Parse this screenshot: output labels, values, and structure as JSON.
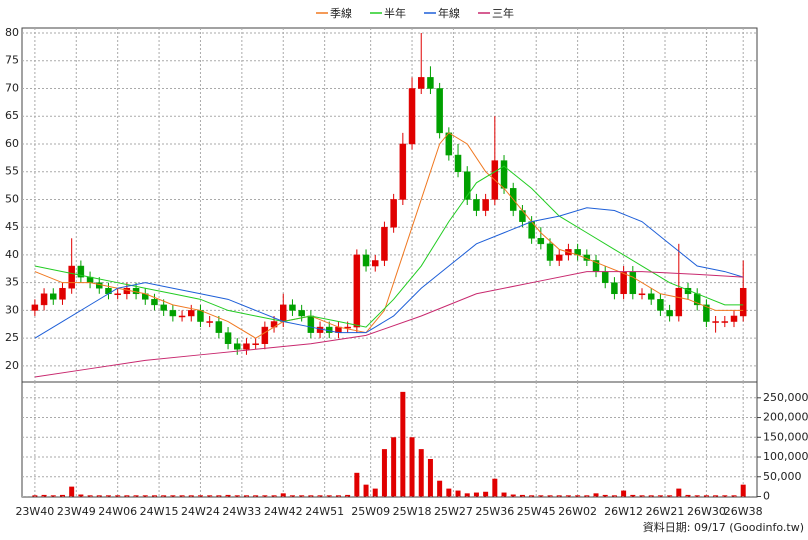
{
  "chart_data": [
    {
      "type": "candlestick",
      "x": [
        0,
        2,
        4,
        6,
        8,
        10,
        12,
        14,
        16,
        18,
        20,
        22,
        24,
        26,
        28,
        30,
        32,
        34,
        36,
        38,
        40,
        42,
        44,
        46,
        48,
        50,
        52,
        54,
        56,
        58,
        60,
        62,
        64,
        66,
        68,
        70,
        72,
        74,
        76,
        78,
        80,
        82,
        84,
        86,
        88,
        90,
        92,
        94,
        96,
        98,
        100,
        102,
        104,
        106,
        108,
        110,
        112,
        114,
        116,
        118,
        120,
        122,
        124,
        126,
        128,
        130,
        132,
        134,
        136,
        138,
        140,
        142,
        144,
        146,
        148,
        150,
        152,
        154
      ],
      "open": [
        30,
        31,
        33,
        32,
        34,
        38,
        36,
        35,
        34,
        33,
        33,
        34,
        33,
        32,
        31,
        30,
        29,
        29,
        30,
        28,
        28,
        26,
        24,
        23,
        24,
        24,
        27,
        28,
        31,
        30,
        29,
        26,
        27,
        26,
        27,
        27,
        40,
        38,
        39,
        45,
        50,
        60,
        70,
        72,
        70,
        62,
        58,
        55,
        50,
        48,
        50,
        57,
        52,
        48,
        46,
        43,
        42,
        39,
        40,
        41,
        40,
        39,
        37,
        35,
        33,
        37,
        33,
        33,
        32,
        30,
        29,
        34,
        33,
        31,
        28,
        28,
        28,
        29
      ],
      "high": [
        32,
        34,
        34,
        35,
        43,
        39,
        37,
        36,
        35,
        34,
        35,
        35,
        34,
        33,
        32,
        31,
        30,
        31,
        31,
        29,
        29,
        27,
        25,
        25,
        25,
        28,
        29,
        33,
        32,
        31,
        30,
        28,
        28,
        28,
        28,
        41,
        41,
        40,
        46,
        51,
        62,
        72,
        80,
        74,
        71,
        63,
        60,
        56,
        51,
        51,
        65,
        58,
        53,
        49,
        47,
        45,
        43,
        41,
        42,
        42,
        41,
        40,
        38,
        36,
        38,
        38,
        34,
        34,
        33,
        31,
        42,
        35,
        34,
        32,
        29,
        29,
        30,
        39
      ],
      "low": [
        29,
        30,
        31,
        31,
        33,
        35,
        34,
        33,
        32,
        32,
        32,
        32,
        31,
        30,
        29,
        28,
        28,
        28,
        27,
        27,
        25,
        23,
        22,
        22,
        23,
        23,
        26,
        27,
        29,
        28,
        25,
        25,
        25,
        25,
        26,
        26,
        37,
        37,
        38,
        44,
        49,
        59,
        69,
        69,
        61,
        57,
        54,
        49,
        47,
        47,
        49,
        51,
        47,
        45,
        42,
        41,
        38,
        38,
        39,
        39,
        38,
        36,
        34,
        32,
        32,
        32,
        32,
        31,
        29,
        28,
        28,
        32,
        30,
        27,
        26,
        27,
        27,
        28
      ],
      "close": [
        31,
        33,
        32,
        34,
        38,
        36,
        35,
        34,
        33,
        33,
        34,
        33,
        32,
        31,
        30,
        29,
        29,
        30,
        28,
        28,
        26,
        24,
        23,
        24,
        24,
        27,
        28,
        31,
        30,
        29,
        26,
        27,
        26,
        27,
        27,
        40,
        38,
        39,
        45,
        50,
        60,
        70,
        72,
        70,
        62,
        58,
        55,
        50,
        48,
        50,
        57,
        52,
        48,
        46,
        43,
        42,
        39,
        40,
        41,
        40,
        39,
        37,
        35,
        33,
        37,
        33,
        33,
        32,
        30,
        29,
        34,
        33,
        31,
        28,
        28,
        28,
        29,
        34
      ],
      "up_color": "#e00000",
      "down_color": "#00a000",
      "xlim": [
        -2.8,
        157
      ],
      "ylim": [
        17.1,
        80.9
      ],
      "yticks": [
        20,
        25,
        30,
        35,
        40,
        45,
        50,
        55,
        60,
        65,
        70,
        75,
        80
      ],
      "grid": true,
      "legend": "top",
      "series": [
        {
          "name": "季線",
          "color": "#f07820",
          "x": [
            0,
            6,
            12,
            18,
            24,
            30,
            36,
            42,
            48,
            54,
            60,
            66,
            72,
            76,
            80,
            84,
            88,
            90,
            94,
            98,
            102,
            106,
            110,
            114,
            118,
            124,
            130,
            136,
            142,
            148,
            154
          ],
          "values": [
            37,
            35,
            35,
            34,
            33,
            31,
            30,
            28,
            25,
            28,
            29,
            27,
            26,
            30,
            40,
            50,
            60,
            62,
            60,
            55,
            52,
            48,
            44,
            41,
            40,
            38,
            36,
            33,
            32,
            30,
            30
          ]
        },
        {
          "name": "半年",
          "color": "#22cc22",
          "x": [
            0,
            6,
            12,
            18,
            24,
            30,
            36,
            42,
            48,
            54,
            60,
            66,
            72,
            78,
            84,
            90,
            96,
            102,
            108,
            114,
            120,
            126,
            132,
            138,
            144,
            150,
            154
          ],
          "values": [
            38,
            37,
            36,
            35,
            34,
            33,
            32,
            30,
            29,
            28,
            29,
            28,
            27,
            32,
            38,
            46,
            53,
            56,
            52,
            47,
            44,
            41,
            38,
            35,
            33,
            31,
            31
          ]
        },
        {
          "name": "年線",
          "color": "#1e5fd8",
          "x": [
            0,
            6,
            12,
            18,
            24,
            30,
            36,
            42,
            48,
            54,
            60,
            66,
            72,
            78,
            84,
            90,
            96,
            102,
            108,
            114,
            120,
            126,
            132,
            138,
            144,
            150,
            154
          ],
          "values": [
            25,
            28,
            31,
            34,
            35,
            34,
            33,
            32,
            30,
            28,
            27,
            26,
            26,
            29,
            34,
            38,
            42,
            44,
            46,
            47,
            48.5,
            48,
            46,
            42,
            38,
            37,
            36
          ]
        },
        {
          "name": "三年",
          "color": "#c8286e",
          "x": [
            0,
            12,
            24,
            36,
            48,
            60,
            72,
            84,
            96,
            108,
            120,
            132,
            144,
            154
          ],
          "values": [
            18,
            19.5,
            21,
            22,
            23,
            24,
            25.5,
            29,
            33,
            35,
            37,
            37,
            36.5,
            36
          ]
        }
      ]
    },
    {
      "type": "bar",
      "values": [
        3000,
        4000,
        3000,
        4000,
        25000,
        5000,
        3000,
        3000,
        3000,
        3000,
        3000,
        3000,
        3000,
        3000,
        3000,
        3000,
        3000,
        3000,
        3000,
        3000,
        3000,
        4000,
        3000,
        3000,
        3000,
        3000,
        3000,
        8000,
        3000,
        3000,
        3000,
        3000,
        3000,
        3000,
        4000,
        60000,
        30000,
        20000,
        120000,
        150000,
        265000,
        150000,
        120000,
        95000,
        40000,
        20000,
        15000,
        8000,
        10000,
        12000,
        45000,
        10000,
        5000,
        4000,
        3000,
        3000,
        3000,
        3000,
        3000,
        3000,
        3000,
        8000,
        4000,
        3000,
        15000,
        4000,
        3000,
        3000,
        3000,
        3000,
        20000,
        4000,
        3000,
        3000,
        3000,
        3000,
        3000,
        30000
      ],
      "color": "#e00000",
      "xlim": [
        -2.8,
        157
      ],
      "ylim": [
        0,
        290000
      ],
      "xticks": [
        {
          "value": 0,
          "label": "23W40"
        },
        {
          "value": 9,
          "label": "23W49"
        },
        {
          "value": 18,
          "label": "24W06"
        },
        {
          "value": 27,
          "label": "24W15"
        },
        {
          "value": 36,
          "label": "24W24"
        },
        {
          "value": 45,
          "label": "24W33"
        },
        {
          "value": 54,
          "label": "24W42"
        },
        {
          "value": 63,
          "label": "24W51"
        },
        {
          "value": 73,
          "label": "25W09"
        },
        {
          "value": 82,
          "label": "25W18"
        },
        {
          "value": 91,
          "label": "25W27"
        },
        {
          "value": 100,
          "label": "25W36"
        },
        {
          "value": 109,
          "label": "25W45"
        },
        {
          "value": 118,
          "label": "26W02"
        },
        {
          "value": 128,
          "label": "26W12"
        },
        {
          "value": 137,
          "label": "26W21"
        },
        {
          "value": 146,
          "label": "26W30"
        },
        {
          "value": 154,
          "label": "26W38"
        }
      ],
      "yticks": [
        0,
        {
          "value": 50000,
          "label": "50,000"
        },
        {
          "value": 100000,
          "label": "100,000"
        },
        {
          "value": 150000,
          "label": "150,000"
        },
        {
          "value": 200000,
          "label": "200,000"
        },
        {
          "value": 250000,
          "label": "250,000"
        }
      ],
      "grid": true,
      "source": "資料日期: 09/17 (Goodinfo.tw)"
    }
  ]
}
